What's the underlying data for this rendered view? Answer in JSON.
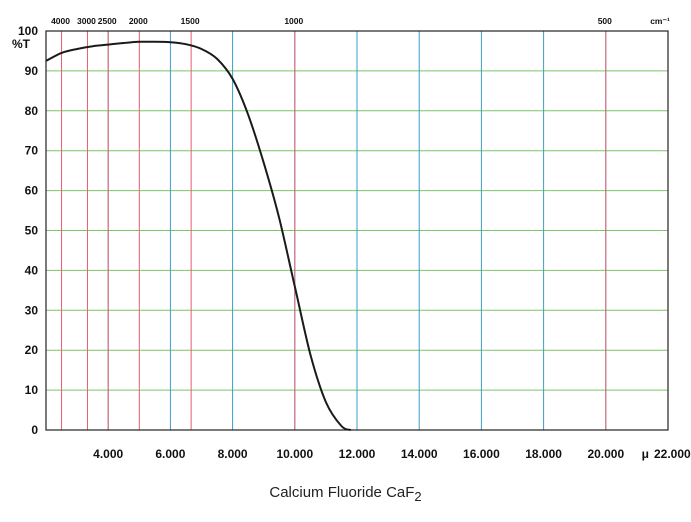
{
  "chart_data": {
    "type": "line",
    "title": "Calcium Fluoride CaF",
    "title_subscript": "2",
    "ylabel": "%T",
    "x_unit_label": "μ",
    "wavenumber_unit_label": "cm⁻¹",
    "xlim": [
      2.0,
      22.0
    ],
    "ylim": [
      0,
      100
    ],
    "y_ticks": [
      0,
      10,
      20,
      30,
      40,
      50,
      60,
      70,
      80,
      90,
      100
    ],
    "y_tick_labels": [
      "0",
      "10",
      "20",
      "30",
      "40",
      "50",
      "60",
      "70",
      "80",
      "90",
      "100"
    ],
    "x_ticks": [
      4,
      6,
      8,
      10,
      12,
      14,
      16,
      18,
      20,
      22
    ],
    "x_tick_labels": [
      "4.000",
      "6.000",
      "8.000",
      "10.000",
      "12.000",
      "14.000",
      "16.000",
      "18.000",
      "20.000",
      "22.000"
    ],
    "micron_gridlines": [
      4,
      6,
      8,
      10,
      12,
      14,
      16,
      18,
      20,
      22
    ],
    "wavenumber_ticks": [
      4000,
      3000,
      2500,
      2000,
      1500,
      1000,
      500
    ],
    "wavenumber_tick_labels": [
      "4000",
      "3000",
      "2500",
      "2000",
      "1500",
      "1000",
      "500"
    ],
    "grid": true,
    "colors": {
      "curve": "#1a1a1a",
      "horizontal_grid": "#7cc46a",
      "micron_grid": "#3a9cc9",
      "wavenumber_grid": "#e0606a",
      "frame": "#222222"
    },
    "series": [
      {
        "x": [
          2.0,
          2.5,
          3.0,
          3.5,
          4.0,
          4.5,
          5.0,
          5.5,
          6.0,
          6.5,
          7.0,
          7.5,
          8.0,
          8.5,
          9.0,
          9.5,
          10.0,
          10.5,
          11.0,
          11.5,
          11.8
        ],
        "y": [
          92.5,
          94.5,
          95.5,
          96.2,
          96.6,
          97.0,
          97.3,
          97.3,
          97.2,
          96.7,
          95.5,
          93.0,
          88.0,
          79.0,
          67.0,
          53.0,
          36.0,
          19.0,
          7.0,
          1.0,
          0
        ]
      }
    ]
  }
}
